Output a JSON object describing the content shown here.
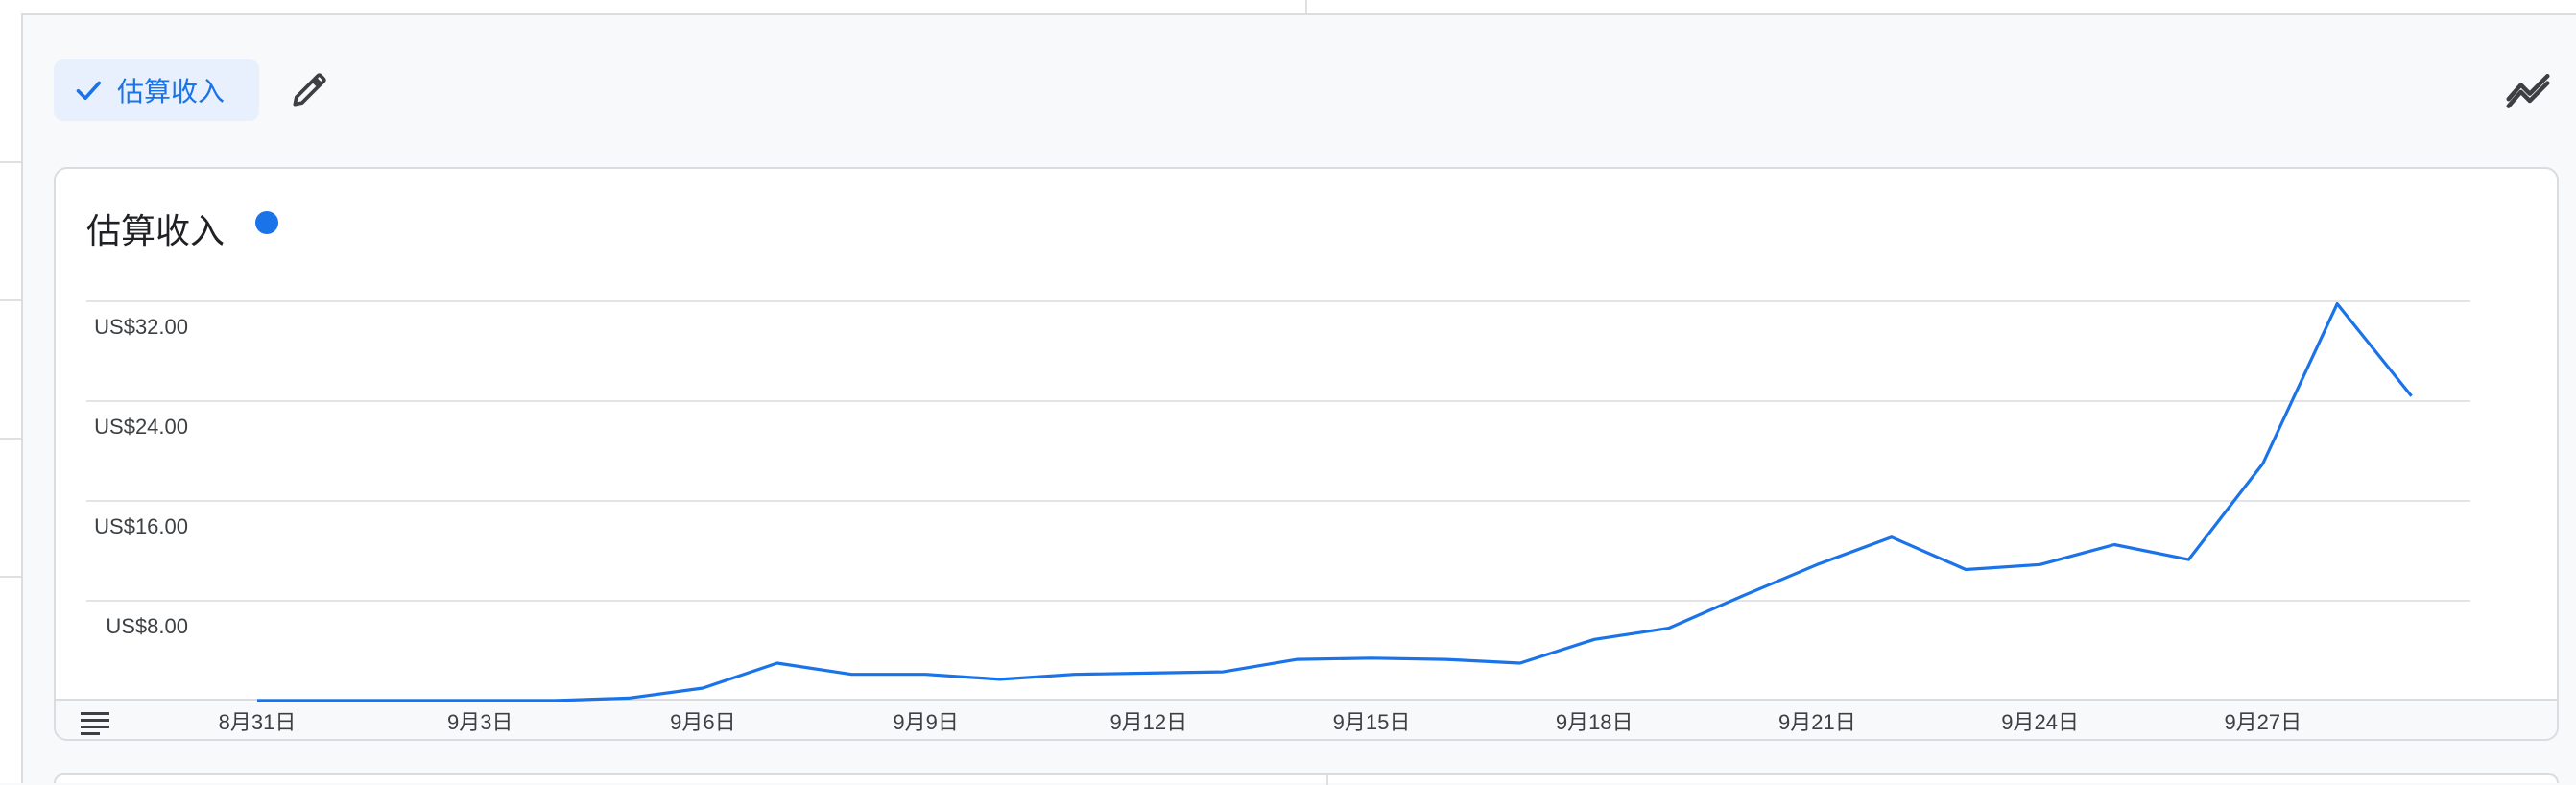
{
  "chip": {
    "label": "估算收入",
    "icon": "check-icon"
  },
  "toolbar": {
    "edit_icon": "pencil-icon",
    "compare_icon": "trend-compare-icon"
  },
  "card": {
    "title": "估算收入",
    "legend_color": "#1a73e8"
  },
  "colors": {
    "accent": "#1a73e8",
    "chip_bg": "#e8f0fe",
    "grid": "#dadce0"
  },
  "chart_data": {
    "type": "line",
    "title": "估算收入",
    "ylabel": "",
    "xlabel": "",
    "ylim": [
      0,
      32
    ],
    "ytick_values": [
      8,
      16,
      24,
      32
    ],
    "ytick_labels": [
      "US$8.00",
      "US$16.00",
      "US$24.00",
      "US$32.00"
    ],
    "xtick_labels": [
      "8月31日",
      "9月3日",
      "9月6日",
      "9月9日",
      "9月12日",
      "9月15日",
      "9月18日",
      "9月21日",
      "9月24日",
      "9月27日"
    ],
    "xtick_index": [
      0,
      3,
      6,
      9,
      12,
      15,
      18,
      21,
      24,
      27
    ],
    "grid": true,
    "series": [
      {
        "color": "#1a73e8",
        "values": [
          0.0,
          0.0,
          0.0,
          0.0,
          0.0,
          0.2,
          1.0,
          3.0,
          2.1,
          2.1,
          1.7,
          2.1,
          2.2,
          2.3,
          3.3,
          3.4,
          3.3,
          3.0,
          4.9,
          5.8,
          8.4,
          10.9,
          13.1,
          10.5,
          10.9,
          12.5,
          11.3,
          19.0,
          31.8,
          24.4
        ]
      }
    ]
  }
}
